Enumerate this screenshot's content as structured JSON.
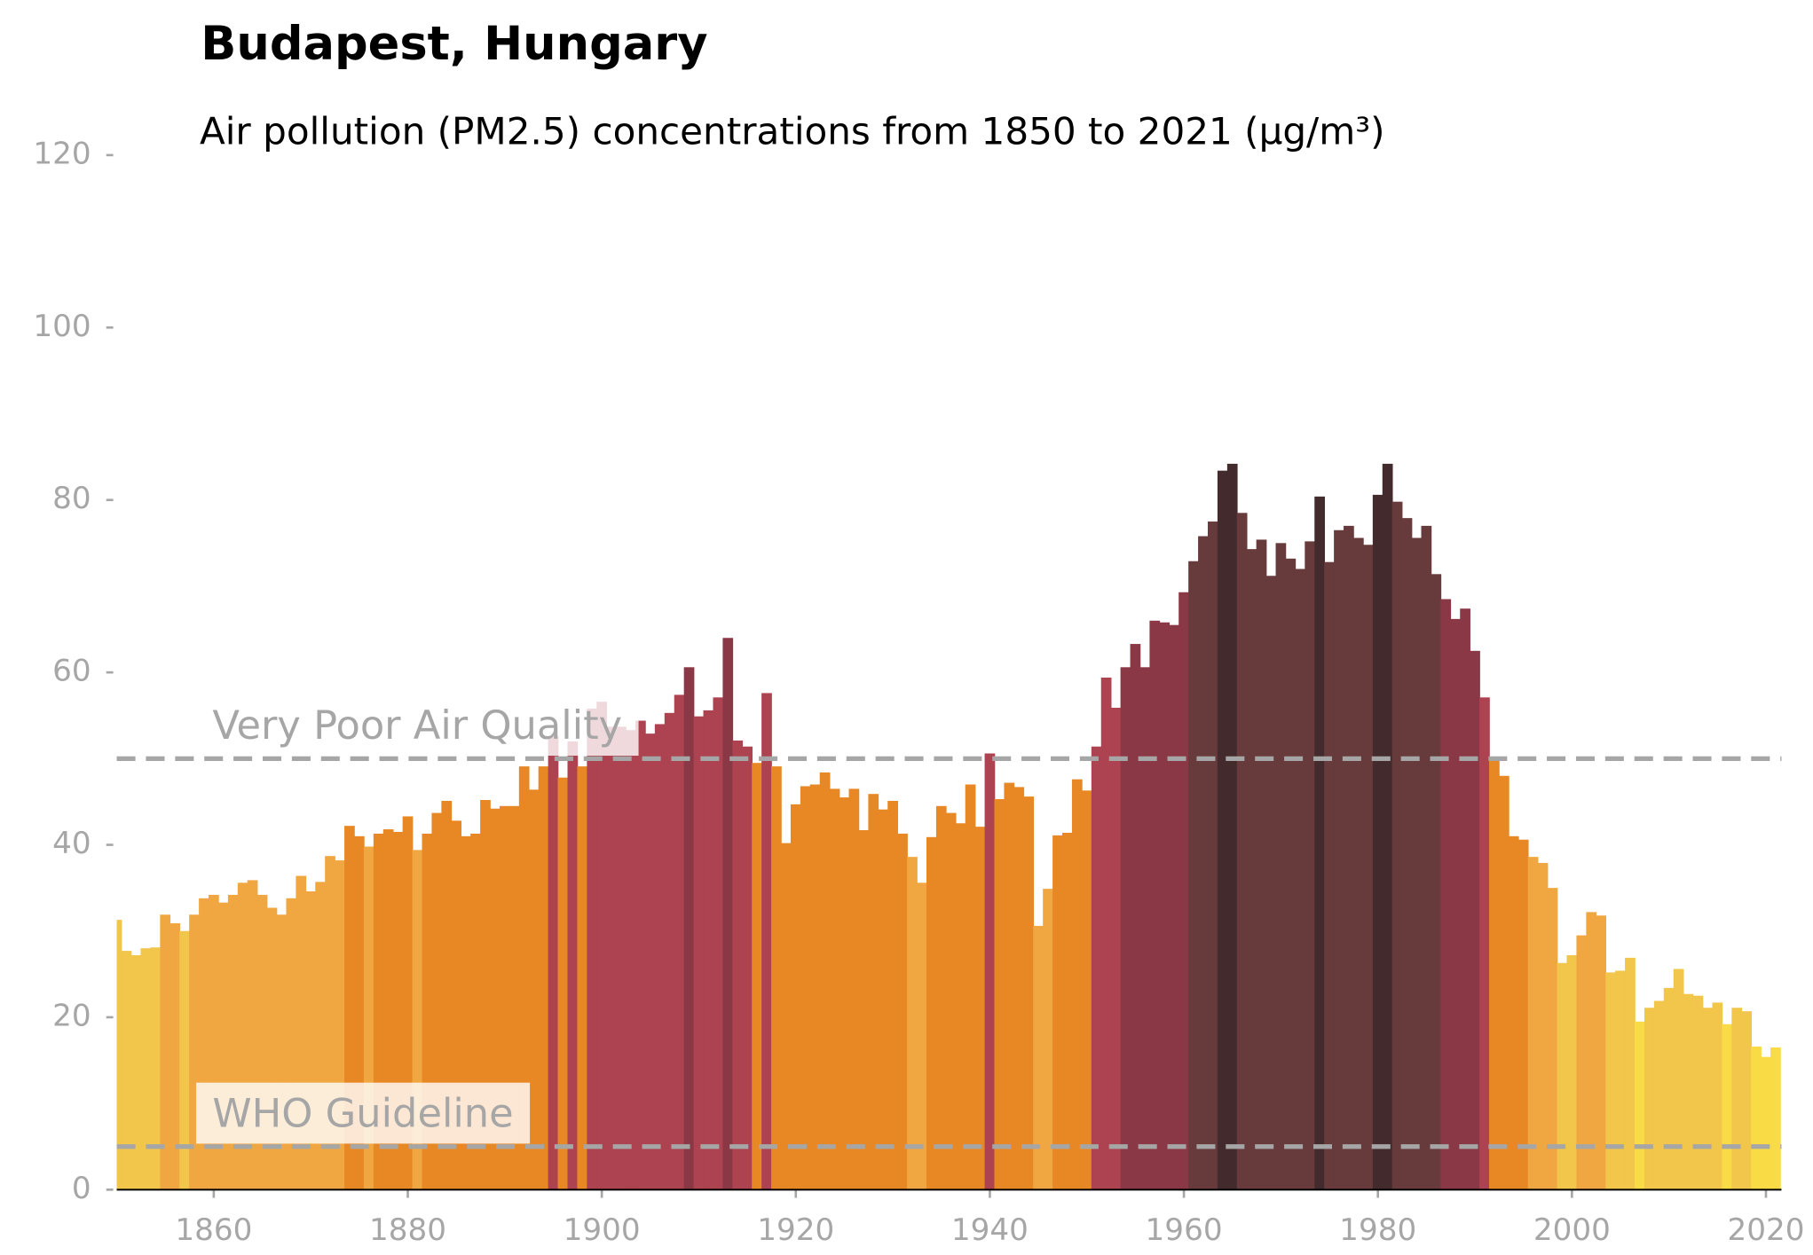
{
  "chart_data": {
    "type": "bar",
    "title": "Budapest, Hungary",
    "subtitle": "Air pollution (PM2.5) concentrations from 1850 to 2021 (µg/m³)",
    "x": [
      1850,
      1851,
      1852,
      1853,
      1854,
      1855,
      1856,
      1857,
      1858,
      1859,
      1860,
      1861,
      1862,
      1863,
      1864,
      1865,
      1866,
      1867,
      1868,
      1869,
      1870,
      1871,
      1872,
      1873,
      1874,
      1875,
      1876,
      1877,
      1878,
      1879,
      1880,
      1881,
      1882,
      1883,
      1884,
      1885,
      1886,
      1887,
      1888,
      1889,
      1890,
      1891,
      1892,
      1893,
      1894,
      1895,
      1896,
      1897,
      1898,
      1899,
      1900,
      1901,
      1902,
      1903,
      1904,
      1905,
      1906,
      1907,
      1908,
      1909,
      1910,
      1911,
      1912,
      1913,
      1914,
      1915,
      1916,
      1917,
      1918,
      1919,
      1920,
      1921,
      1922,
      1923,
      1924,
      1925,
      1926,
      1927,
      1928,
      1929,
      1930,
      1931,
      1932,
      1933,
      1934,
      1935,
      1936,
      1937,
      1938,
      1939,
      1940,
      1941,
      1942,
      1943,
      1944,
      1945,
      1946,
      1947,
      1948,
      1949,
      1950,
      1951,
      1952,
      1953,
      1954,
      1955,
      1956,
      1957,
      1958,
      1959,
      1960,
      1961,
      1962,
      1963,
      1964,
      1965,
      1966,
      1967,
      1968,
      1969,
      1970,
      1971,
      1972,
      1973,
      1974,
      1975,
      1976,
      1977,
      1978,
      1979,
      1980,
      1981,
      1982,
      1983,
      1984,
      1985,
      1986,
      1987,
      1988,
      1989,
      1990,
      1991,
      1992,
      1993,
      1994,
      1995,
      1996,
      1997,
      1998,
      1999,
      2000,
      2001,
      2002,
      2003,
      2004,
      2005,
      2006,
      2007,
      2008,
      2009,
      2010,
      2011,
      2012,
      2013,
      2014,
      2015,
      2016,
      2017,
      2018,
      2019,
      2020,
      2021
    ],
    "values": [
      31.3,
      27.7,
      27.2,
      28.0,
      28.1,
      31.9,
      30.9,
      30.0,
      31.9,
      33.8,
      34.2,
      33.3,
      34.2,
      35.6,
      35.9,
      34.2,
      32.7,
      31.9,
      33.8,
      36.4,
      34.6,
      35.7,
      38.7,
      38.2,
      42.2,
      41.0,
      39.8,
      41.3,
      41.8,
      41.5,
      43.3,
      39.4,
      41.3,
      43.7,
      45.1,
      42.8,
      41.0,
      41.3,
      45.2,
      44.2,
      44.5,
      44.5,
      49.1,
      46.4,
      49.1,
      52.6,
      47.8,
      52.0,
      49.1,
      55.8,
      56.6,
      53.7,
      53.7,
      53.3,
      54.4,
      52.9,
      54.0,
      55.3,
      57.4,
      60.6,
      54.9,
      55.6,
      57.1,
      64.0,
      52.1,
      51.4,
      49.5,
      57.6,
      49.1,
      40.2,
      44.7,
      46.8,
      47.0,
      48.4,
      46.5,
      45.5,
      46.5,
      41.7,
      45.9,
      44.1,
      45.1,
      41.3,
      38.6,
      35.6,
      40.9,
      44.5,
      43.7,
      42.5,
      47.0,
      42.1,
      50.6,
      45.3,
      47.2,
      46.7,
      45.6,
      30.6,
      34.9,
      41.1,
      41.4,
      47.6,
      46.3,
      51.4,
      59.4,
      55.9,
      60.6,
      63.3,
      60.6,
      66.0,
      65.8,
      65.5,
      69.3,
      72.9,
      75.8,
      77.5,
      83.4,
      84.2,
      78.5,
      74.3,
      75.4,
      71.2,
      75.0,
      73.2,
      72.0,
      75.2,
      80.4,
      72.8,
      76.5,
      77.0,
      75.6,
      74.8,
      80.6,
      84.2,
      79.8,
      77.9,
      75.6,
      77.0,
      71.4,
      68.5,
      66.2,
      67.4,
      62.5,
      57.1,
      49.8,
      48.0,
      41.0,
      40.6,
      38.6,
      37.9,
      35.0,
      26.3,
      27.2,
      29.5,
      32.2,
      31.8,
      25.2,
      25.4,
      26.9,
      19.5,
      21.1,
      21.9,
      23.4,
      25.6,
      22.7,
      22.5,
      21.1,
      21.7,
      19.2,
      21.1,
      20.7,
      16.6,
      15.4,
      16.5
    ],
    "colors": [
      "#f2c54b",
      "#f2c54b",
      "#f2c54b",
      "#f2c54b",
      "#f2c54b",
      "#f0a742",
      "#f0a742",
      "#f2c54b",
      "#f0a742",
      "#f0a742",
      "#f0a742",
      "#f0a742",
      "#f0a742",
      "#f0a742",
      "#f0a742",
      "#f0a742",
      "#f0a742",
      "#f0a742",
      "#f0a742",
      "#f0a742",
      "#f0a742",
      "#f0a742",
      "#f0a742",
      "#f0a742",
      "#e88824",
      "#e88824",
      "#f0a742",
      "#e88824",
      "#e88824",
      "#e88824",
      "#e88824",
      "#f0a742",
      "#e88824",
      "#e88824",
      "#e88824",
      "#e88824",
      "#e88824",
      "#e88824",
      "#e88824",
      "#e88824",
      "#e88824",
      "#e88824",
      "#e88824",
      "#e88824",
      "#e88824",
      "#ad4350",
      "#e88824",
      "#ad4350",
      "#e88824",
      "#ad4350",
      "#ad4350",
      "#ad4350",
      "#ad4350",
      "#ad4350",
      "#ad4350",
      "#ad4350",
      "#ad4350",
      "#ad4350",
      "#ad4350",
      "#8b3846",
      "#ad4350",
      "#ad4350",
      "#ad4350",
      "#8b3846",
      "#ad4350",
      "#ad4350",
      "#e88824",
      "#ad4350",
      "#e88824",
      "#e88824",
      "#e88824",
      "#e88824",
      "#e88824",
      "#e88824",
      "#e88824",
      "#e88824",
      "#e88824",
      "#e88824",
      "#e88824",
      "#e88824",
      "#e88824",
      "#e88824",
      "#f0a742",
      "#f0a742",
      "#e88824",
      "#e88824",
      "#e88824",
      "#e88824",
      "#e88824",
      "#e88824",
      "#ad4350",
      "#e88824",
      "#e88824",
      "#e88824",
      "#e88824",
      "#f0a742",
      "#f0a742",
      "#e88824",
      "#e88824",
      "#e88824",
      "#e88824",
      "#ad4350",
      "#ad4350",
      "#ad4350",
      "#8b3846",
      "#8b3846",
      "#8b3846",
      "#8b3846",
      "#8b3846",
      "#8b3846",
      "#8b3846",
      "#673a3c",
      "#673a3c",
      "#673a3c",
      "#432b2d",
      "#432b2d",
      "#673a3c",
      "#673a3c",
      "#673a3c",
      "#673a3c",
      "#673a3c",
      "#673a3c",
      "#673a3c",
      "#673a3c",
      "#432b2d",
      "#673a3c",
      "#673a3c",
      "#673a3c",
      "#673a3c",
      "#673a3c",
      "#432b2d",
      "#432b2d",
      "#673a3c",
      "#673a3c",
      "#673a3c",
      "#673a3c",
      "#673a3c",
      "#8b3846",
      "#8b3846",
      "#8b3846",
      "#8b3846",
      "#ad4350",
      "#e88824",
      "#e88824",
      "#e88824",
      "#e88824",
      "#f0a742",
      "#f0a742",
      "#f0a742",
      "#f2c54b",
      "#f2c54b",
      "#f0a742",
      "#f0a742",
      "#f0a742",
      "#f2c54b",
      "#f2c54b",
      "#f2c54b",
      "#f9dc45",
      "#f2c54b",
      "#f2c54b",
      "#f2c54b",
      "#f2c54b",
      "#f2c54b",
      "#f2c54b",
      "#f2c54b",
      "#f2c54b",
      "#f9dc45",
      "#f2c54b",
      "#f2c54b",
      "#f9dc45",
      "#f9dc45",
      "#f9dc45"
    ],
    "xlim": [
      1850,
      2021.6
    ],
    "xticks": [
      1860,
      1880,
      1900,
      1920,
      1940,
      1960,
      1980,
      2000,
      2020
    ],
    "ylim": [
      0,
      120
    ],
    "yticks": [
      0,
      20,
      40,
      60,
      80,
      100,
      120
    ],
    "reference_lines": [
      {
        "label": "Very Poor Air Quality",
        "value": 50
      },
      {
        "label": "WHO Guideline",
        "value": 5
      }
    ]
  }
}
